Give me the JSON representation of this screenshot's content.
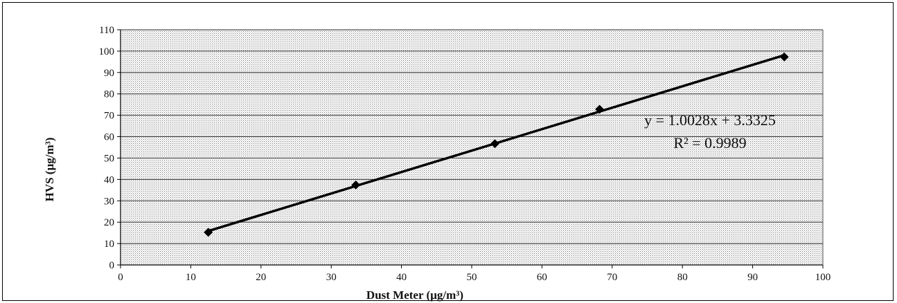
{
  "chart_data": {
    "type": "scatter",
    "title": "",
    "xlabel": "Dust Meter  (µg/m³)",
    "ylabel": "HVS (µg/m³)",
    "xlim": [
      0,
      100
    ],
    "ylim": [
      0,
      110
    ],
    "x_ticks": [
      0,
      10,
      20,
      30,
      40,
      50,
      60,
      70,
      80,
      90,
      100
    ],
    "y_ticks": [
      0,
      10,
      20,
      30,
      40,
      50,
      60,
      70,
      80,
      90,
      100,
      110
    ],
    "grid": true,
    "series": [
      {
        "x": [
          12.5,
          33.5,
          53.3,
          68.2,
          94.5
        ],
        "y": [
          15.3,
          37.4,
          56.7,
          72.8,
          97.3
        ],
        "marker": "diamond",
        "color": "#000000"
      }
    ],
    "trendline": {
      "slope": 1.0028,
      "intercept": 3.3325,
      "x_range": [
        12.5,
        94.5
      ],
      "equation_label": "y = 1.0028x + 3.3325",
      "r2_label": "R² = 0.9989"
    },
    "plot_background": "#dcdcdc"
  }
}
